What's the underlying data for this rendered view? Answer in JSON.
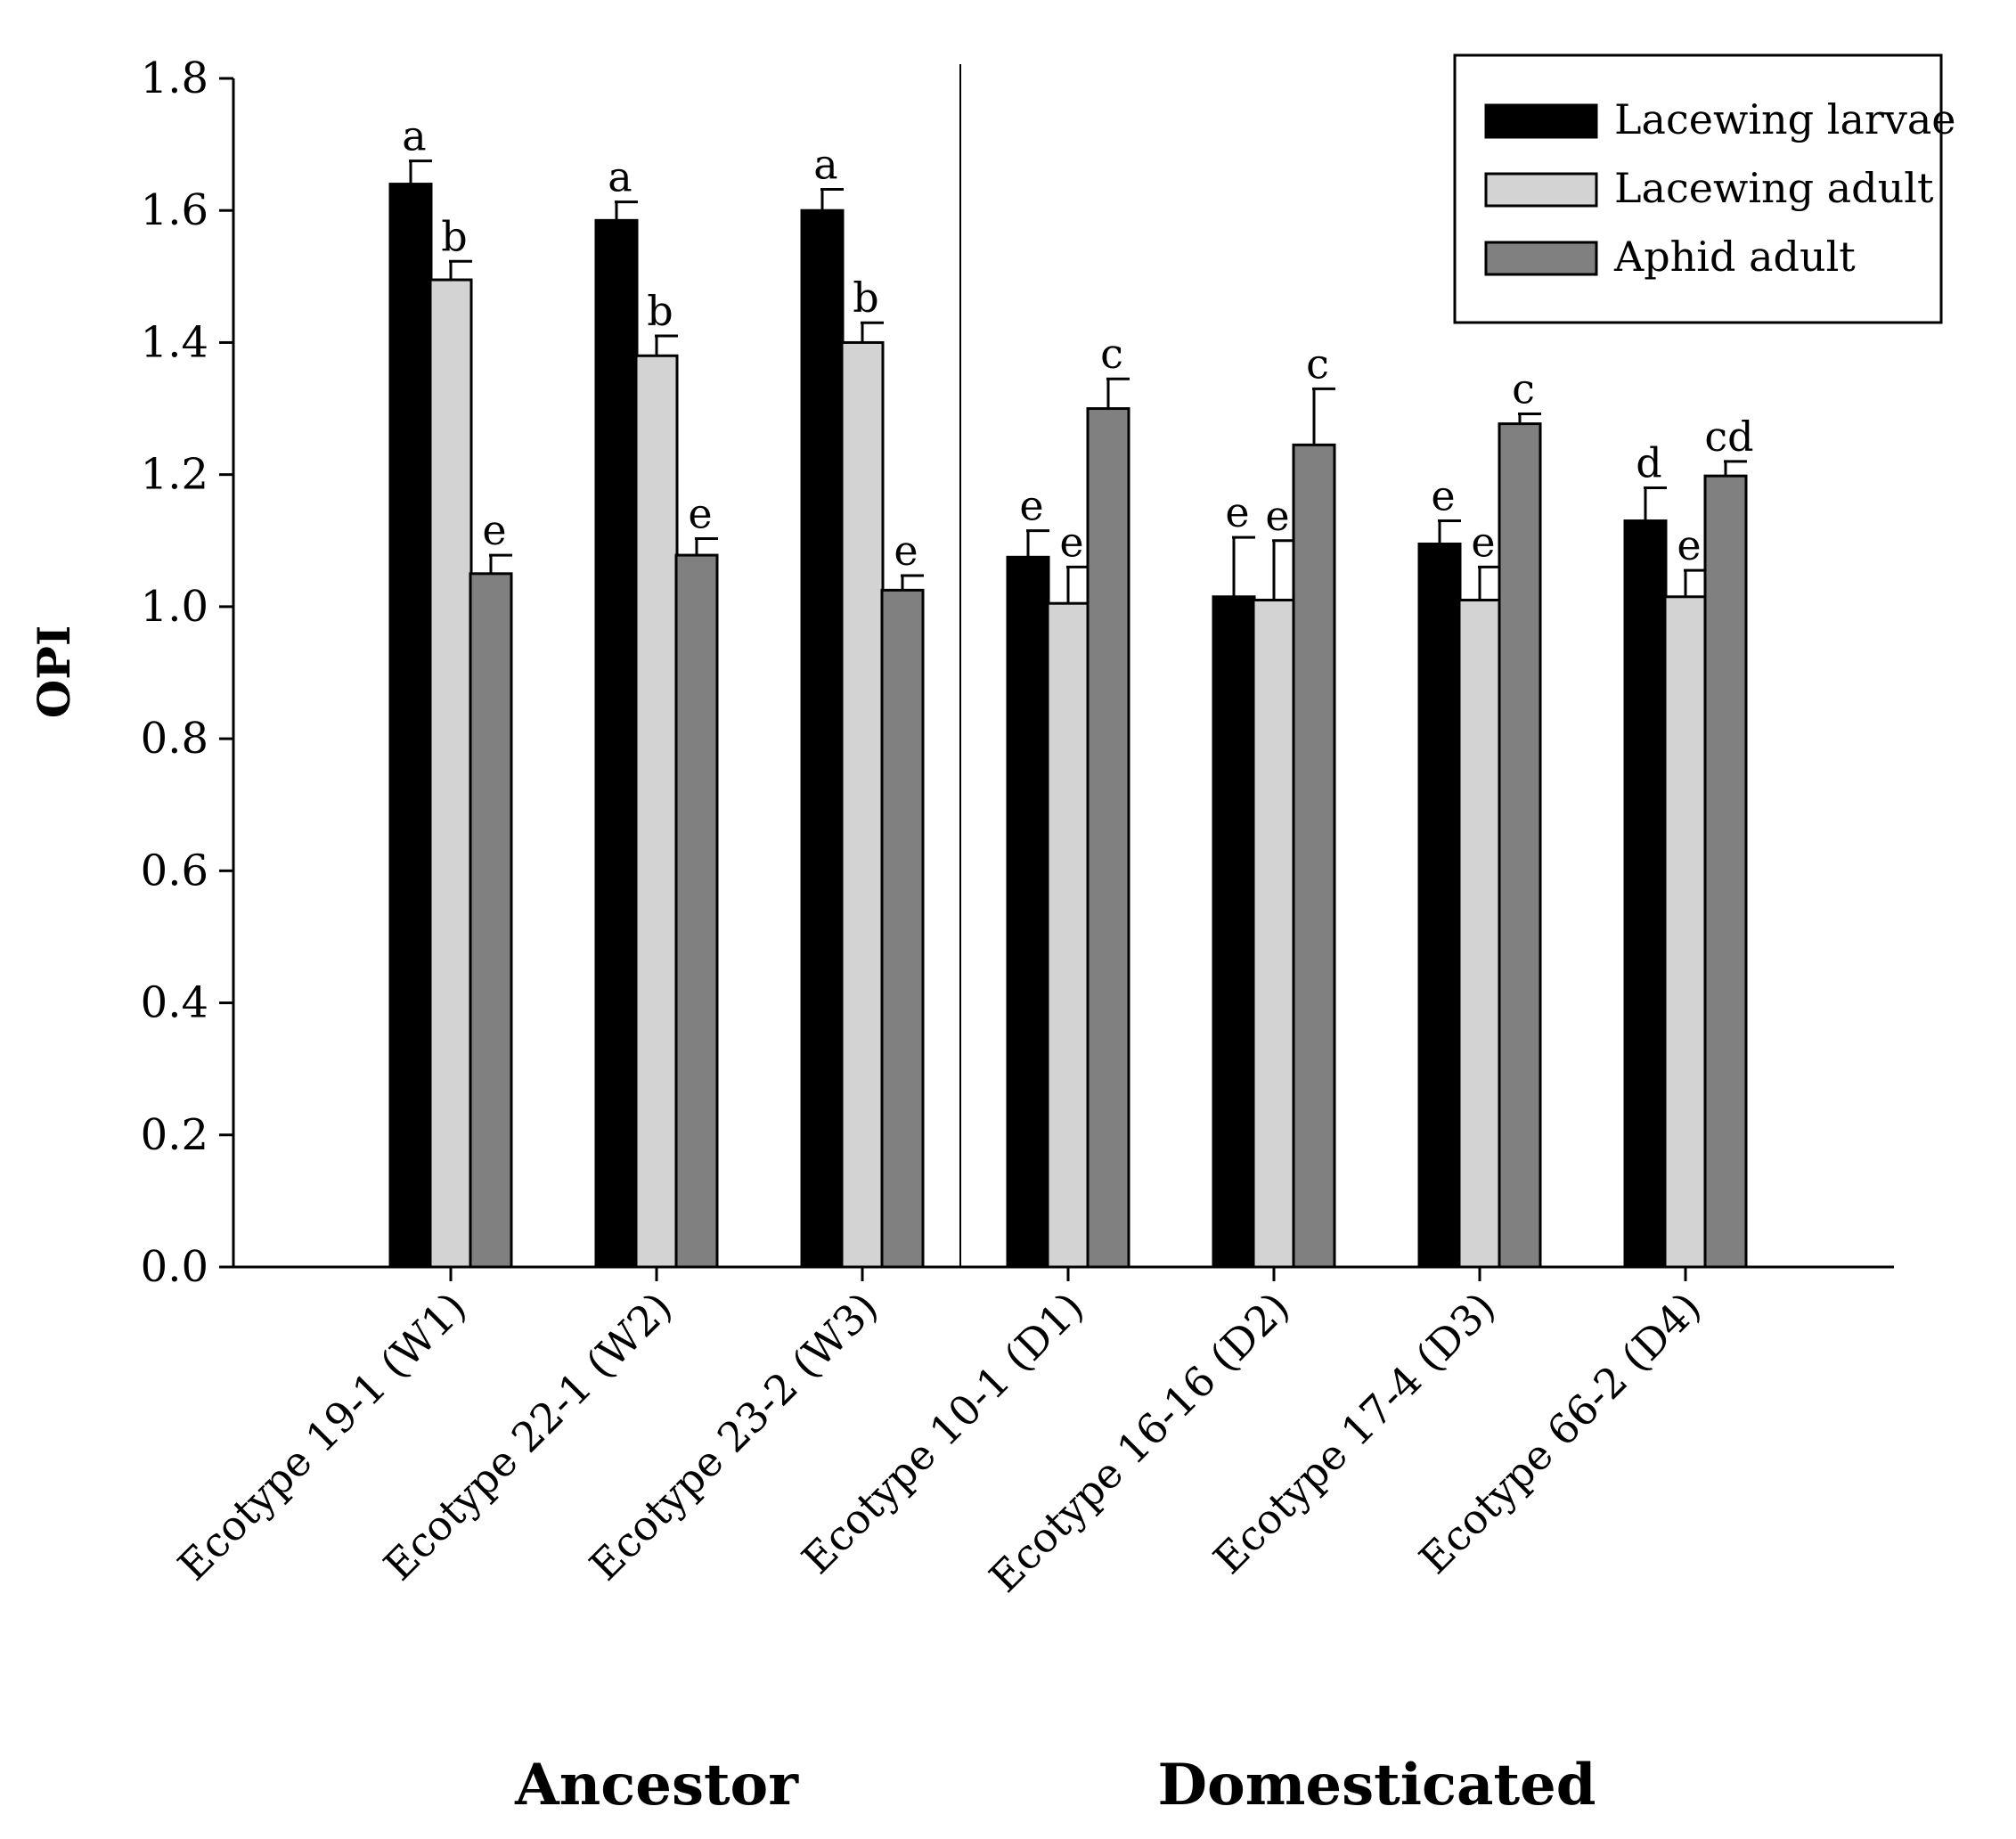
{
  "chart_data": {
    "type": "bar",
    "title": "",
    "xlabel": "",
    "ylabel": "OPI",
    "ylim": [
      0,
      1.8
    ],
    "yticks": [
      "0.0",
      "0.2",
      "0.4",
      "0.6",
      "0.8",
      "1.0",
      "1.2",
      "1.4",
      "1.6",
      "1.8"
    ],
    "categories": [
      "Ecotype 19-1 (W1)",
      "Ecotype 22-1 (W2)",
      "Ecotype 23-2 (W3)",
      "Ecotype 10-1 (D1)",
      "Ecotype 16-16 (D2)",
      "Ecotype 17-4 (D3)",
      "Ecotype 66-2 (D4)"
    ],
    "groups": [
      {
        "label": "Ancestor",
        "categories": [
          0,
          1,
          2
        ]
      },
      {
        "label": "Domesticated",
        "categories": [
          3,
          4,
          5,
          6
        ]
      }
    ],
    "legend_position": "top-right",
    "series": [
      {
        "name": "Lacewing larvae",
        "color": "#000000",
        "values": [
          1.64,
          1.585,
          1.6,
          1.075,
          1.015,
          1.095,
          1.13
        ],
        "errors": [
          0.035,
          0.028,
          0.032,
          0.04,
          0.09,
          0.035,
          0.05
        ],
        "letters": [
          "a",
          "a",
          "a",
          "e",
          "e",
          "e",
          "d"
        ]
      },
      {
        "name": "Lacewing adult",
        "color": "#d3d3d3",
        "values": [
          1.495,
          1.38,
          1.4,
          1.005,
          1.01,
          1.01,
          1.015
        ],
        "errors": [
          0.028,
          0.03,
          0.03,
          0.055,
          0.09,
          0.05,
          0.04
        ],
        "letters": [
          "b",
          "b",
          "b",
          "e",
          "e",
          "e",
          "e"
        ]
      },
      {
        "name": "Aphid adult",
        "color": "#808080",
        "values": [
          1.05,
          1.078,
          1.025,
          1.3,
          1.245,
          1.277,
          1.198
        ],
        "errors": [
          0.028,
          0.025,
          0.022,
          0.045,
          0.085,
          0.015,
          0.022
        ],
        "letters": [
          "e",
          "e",
          "e",
          "c",
          "c",
          "c",
          "cd"
        ]
      }
    ]
  }
}
